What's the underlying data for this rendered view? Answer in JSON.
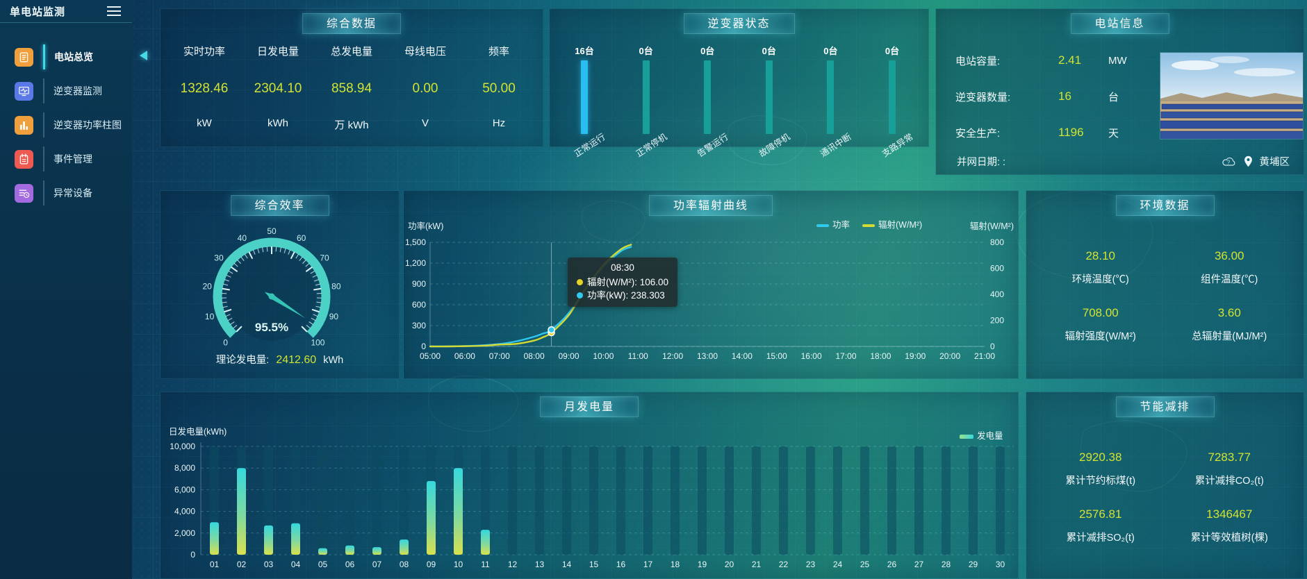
{
  "app": {
    "title": "单电站监测",
    "location": "黄埔区"
  },
  "colors": {
    "value_yellow": "#d3e332",
    "power_line": "#2fc6f2",
    "radiation_line": "#d3d935",
    "bar_active": "#29bdf2",
    "bar_idle": "#17a09a",
    "gauge": "#4fd9cb",
    "tooltip_radiation_dot": "#e6d326",
    "tooltip_power_dot": "#30c9f0"
  },
  "sidebar": {
    "items": [
      {
        "id": "station-overview",
        "label": "电站总览",
        "icon": "doc",
        "color": "#ef9f3c",
        "active": true
      },
      {
        "id": "inverter-monitor",
        "label": "逆变器监测",
        "icon": "monitor",
        "color": "#5a78e6",
        "active": false
      },
      {
        "id": "inverter-power-bars",
        "label": "逆变器功率柱图",
        "icon": "bars",
        "color": "#ef9f3c",
        "active": false
      },
      {
        "id": "event-management",
        "label": "事件管理",
        "icon": "notebook",
        "color": "#ee5a52",
        "active": false
      },
      {
        "id": "abnormal-devices",
        "label": "异常设备",
        "icon": "listclock",
        "color": "#a46ae0",
        "active": false
      }
    ]
  },
  "panels": {
    "summary": {
      "title": "综合数据",
      "metrics": [
        {
          "label": "实时功率",
          "value": "1328.46",
          "unit": "kW"
        },
        {
          "label": "日发电量",
          "value": "2304.10",
          "unit": "kWh"
        },
        {
          "label": "总发电量",
          "value": "858.94",
          "unit": "万 kWh"
        },
        {
          "label": "母线电压",
          "value": "0.00",
          "unit": "V"
        },
        {
          "label": "频率",
          "value": "50.00",
          "unit": "Hz"
        }
      ]
    },
    "inverter_status": {
      "title": "逆变器状态",
      "items": [
        {
          "count": "16台",
          "label": "正常运行",
          "highlight": true
        },
        {
          "count": "0台",
          "label": "正常停机",
          "highlight": false
        },
        {
          "count": "0台",
          "label": "告警运行",
          "highlight": false
        },
        {
          "count": "0台",
          "label": "故障停机",
          "highlight": false
        },
        {
          "count": "0台",
          "label": "通讯中断",
          "highlight": false
        },
        {
          "count": "0台",
          "label": "支路异常",
          "highlight": false
        }
      ]
    },
    "station_info": {
      "title": "电站信息",
      "rows": [
        {
          "label": "电站容量:",
          "value": "2.41",
          "unit": "MW"
        },
        {
          "label": "逆变器数量:",
          "value": "16",
          "unit": "台"
        },
        {
          "label": "安全生产:",
          "value": "1196",
          "unit": "天"
        }
      ],
      "grid_date_label": "并网日期:  :"
    },
    "efficiency": {
      "title": "综合效率",
      "gauge_display": "95.5%",
      "theory_label": "理论发电量:",
      "theory_value": "2412.60",
      "theory_unit": "kWh"
    },
    "power_curve": {
      "title": "功率辐射曲线",
      "left_axis_name": "功率(kW)",
      "right_axis_name": "辐射(W/M²)",
      "tooltip": {
        "time": "08:30",
        "rows": [
          {
            "label": "辐射(W/M²)",
            "value": "106.00",
            "color": "#e6d326"
          },
          {
            "label": "功率(kW)",
            "value": "238.303",
            "color": "#30c9f0"
          }
        ]
      }
    },
    "environment": {
      "title": "环境数据",
      "metrics": [
        {
          "value": "28.10",
          "label": "环境温度(℃)"
        },
        {
          "value": "36.00",
          "label": "组件温度(℃)"
        },
        {
          "value": "708.00",
          "label": "辐射强度(W/M²)"
        },
        {
          "value": "3.60",
          "label": "总辐射量(MJ/M²)"
        }
      ]
    },
    "monthly": {
      "title": "月发电量",
      "ylabel": "日发电量(kWh)",
      "legend": "发电量"
    },
    "saving": {
      "title": "节能减排",
      "metrics": [
        {
          "value": "2920.38",
          "label": "累计节约标煤(t)"
        },
        {
          "value": "7283.77",
          "label": "累计减排CO₂(t)"
        },
        {
          "value": "2576.81",
          "label": "累计减排SO₂(t)"
        },
        {
          "value": "1346467",
          "label": "累计等效植树(棵)"
        }
      ]
    }
  },
  "chart_data": [
    {
      "id": "efficiency-gauge",
      "type": "gauge",
      "title": "综合效率",
      "value": 95.5,
      "min": 0,
      "max": 100,
      "tick_labels": [
        0,
        10,
        20,
        30,
        40,
        50,
        60,
        70,
        80,
        90,
        100
      ],
      "display": "95.5%"
    },
    {
      "id": "power-radiation",
      "type": "line",
      "title": "功率辐射曲线",
      "x_start": 5,
      "x_end": 21,
      "x_labels": [
        "05:00",
        "06:00",
        "07:00",
        "08:00",
        "09:00",
        "10:00",
        "11:00",
        "12:00",
        "13:00",
        "14:00",
        "15:00",
        "16:00",
        "17:00",
        "18:00",
        "19:00",
        "20:00",
        "21:00"
      ],
      "left_ticks": [
        "1,500",
        "1,200",
        "900",
        "600",
        "300",
        "0"
      ],
      "right_ticks": [
        "800",
        "600",
        "400",
        "200",
        "0"
      ],
      "left_max": 1500,
      "right_max": 800,
      "legend": [
        {
          "name": "功率",
          "color": "#30c9f0"
        },
        {
          "name": "辐射(W/M²)",
          "color": "#d3d935"
        }
      ],
      "series": [
        {
          "name": "功率",
          "axis": "left",
          "color": "#2fc6f2",
          "points": [
            [
              5,
              0
            ],
            [
              5.5,
              1
            ],
            [
              6,
              5
            ],
            [
              6.5,
              15
            ],
            [
              7,
              35
            ],
            [
              7.5,
              75
            ],
            [
              8,
              140
            ],
            [
              8.25,
              185
            ],
            [
              8.5,
              238.303
            ],
            [
              9,
              480
            ],
            [
              9.5,
              840
            ],
            [
              10,
              1150
            ],
            [
              10.5,
              1370
            ],
            [
              10.8,
              1435
            ]
          ]
        },
        {
          "name": "辐射(W/M²)",
          "axis": "right",
          "color": "#d3d935",
          "points": [
            [
              5,
              0
            ],
            [
              5.5,
              0
            ],
            [
              6,
              2
            ],
            [
              6.5,
              5
            ],
            [
              7,
              14
            ],
            [
              7.5,
              20
            ],
            [
              8,
              45
            ],
            [
              8.25,
              70
            ],
            [
              8.5,
              106
            ],
            [
              9,
              240
            ],
            [
              9.5,
              450
            ],
            [
              10,
              625
            ],
            [
              10.5,
              745
            ],
            [
              10.8,
              782
            ]
          ]
        }
      ],
      "hover": {
        "x": 8.5,
        "power": 238.303,
        "radiation": 106.0
      },
      "grid": true,
      "legend_position": "top-right"
    },
    {
      "id": "monthly-generation",
      "type": "bar",
      "title": "月发电量",
      "categories": [
        "01",
        "02",
        "03",
        "04",
        "05",
        "06",
        "07",
        "08",
        "09",
        "10",
        "11",
        "12",
        "13",
        "14",
        "15",
        "16",
        "17",
        "18",
        "19",
        "20",
        "21",
        "22",
        "23",
        "24",
        "25",
        "26",
        "27",
        "28",
        "29",
        "30"
      ],
      "values": [
        3000,
        8000,
        2700,
        2900,
        600,
        850,
        700,
        1400,
        6800,
        8000,
        2300,
        0,
        0,
        0,
        0,
        0,
        0,
        0,
        0,
        0,
        0,
        0,
        0,
        0,
        0,
        0,
        0,
        0,
        0,
        0
      ],
      "ylabel": "日发电量(kWh)",
      "ylim": [
        0,
        10000
      ],
      "yticks": [
        "10,000",
        "8,000",
        "6,000",
        "4,000",
        "2,000",
        "0"
      ],
      "legend": "发电量",
      "grid": true
    }
  ]
}
